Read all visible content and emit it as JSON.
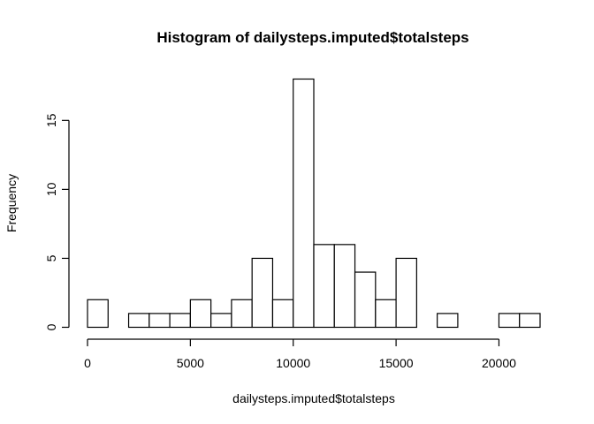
{
  "chart_data": {
    "type": "bar",
    "title": "Histogram of dailysteps.imputed$totalsteps",
    "xlabel": "dailysteps.imputed$totalsteps",
    "ylabel": "Frequency",
    "bin_width": 1000,
    "bins": [
      {
        "x0": 0,
        "x1": 1000,
        "count": 2
      },
      {
        "x0": 1000,
        "x1": 2000,
        "count": 0
      },
      {
        "x0": 2000,
        "x1": 3000,
        "count": 1
      },
      {
        "x0": 3000,
        "x1": 4000,
        "count": 1
      },
      {
        "x0": 4000,
        "x1": 5000,
        "count": 1
      },
      {
        "x0": 5000,
        "x1": 6000,
        "count": 2
      },
      {
        "x0": 6000,
        "x1": 7000,
        "count": 1
      },
      {
        "x0": 7000,
        "x1": 8000,
        "count": 2
      },
      {
        "x0": 8000,
        "x1": 9000,
        "count": 5
      },
      {
        "x0": 9000,
        "x1": 10000,
        "count": 2
      },
      {
        "x0": 10000,
        "x1": 11000,
        "count": 18
      },
      {
        "x0": 11000,
        "x1": 12000,
        "count": 6
      },
      {
        "x0": 12000,
        "x1": 13000,
        "count": 6
      },
      {
        "x0": 13000,
        "x1": 14000,
        "count": 4
      },
      {
        "x0": 14000,
        "x1": 15000,
        "count": 2
      },
      {
        "x0": 15000,
        "x1": 16000,
        "count": 5
      },
      {
        "x0": 16000,
        "x1": 17000,
        "count": 0
      },
      {
        "x0": 17000,
        "x1": 18000,
        "count": 1
      },
      {
        "x0": 18000,
        "x1": 19000,
        "count": 0
      },
      {
        "x0": 19000,
        "x1": 20000,
        "count": 0
      },
      {
        "x0": 20000,
        "x1": 21000,
        "count": 1
      },
      {
        "x0": 21000,
        "x1": 22000,
        "count": 1
      }
    ],
    "xlim": [
      0,
      22000
    ],
    "ylim": [
      0,
      18
    ],
    "x_ticks": [
      0,
      5000,
      10000,
      15000,
      20000
    ],
    "x_tick_labels": [
      "0",
      "5000",
      "10000",
      "15000",
      "20000"
    ],
    "y_ticks": [
      0,
      5,
      10,
      15
    ],
    "y_tick_labels": [
      "0",
      "5",
      "10",
      "15"
    ],
    "grid": false,
    "legend": "none"
  }
}
